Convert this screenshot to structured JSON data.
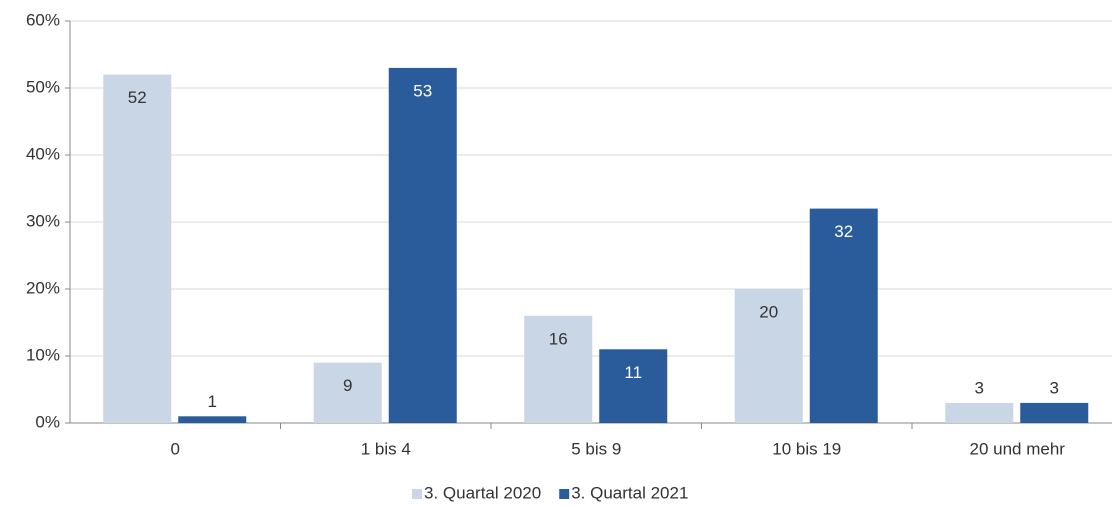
{
  "chart_data": {
    "type": "bar",
    "categories": [
      "0",
      "1 bis 4",
      "5 bis 9",
      "10 bis 19",
      "20 und mehr"
    ],
    "series": [
      {
        "name": "3. Quartal 2020",
        "color": "#c9d6e5",
        "values": [
          52,
          9,
          16,
          20,
          3
        ]
      },
      {
        "name": "3. Quartal 2021",
        "color": "#2a5b9a",
        "values": [
          1,
          53,
          11,
          32,
          3
        ]
      }
    ],
    "ylim": [
      0,
      60
    ],
    "yticks": [
      {
        "value": 0,
        "label": "0%"
      },
      {
        "value": 10,
        "label": "10%"
      },
      {
        "value": 20,
        "label": "20%"
      },
      {
        "value": 30,
        "label": "30%"
      },
      {
        "value": 40,
        "label": "40%"
      },
      {
        "value": 50,
        "label": "50%"
      },
      {
        "value": 60,
        "label": "60%"
      }
    ],
    "grid": true,
    "legend": "bottom"
  }
}
